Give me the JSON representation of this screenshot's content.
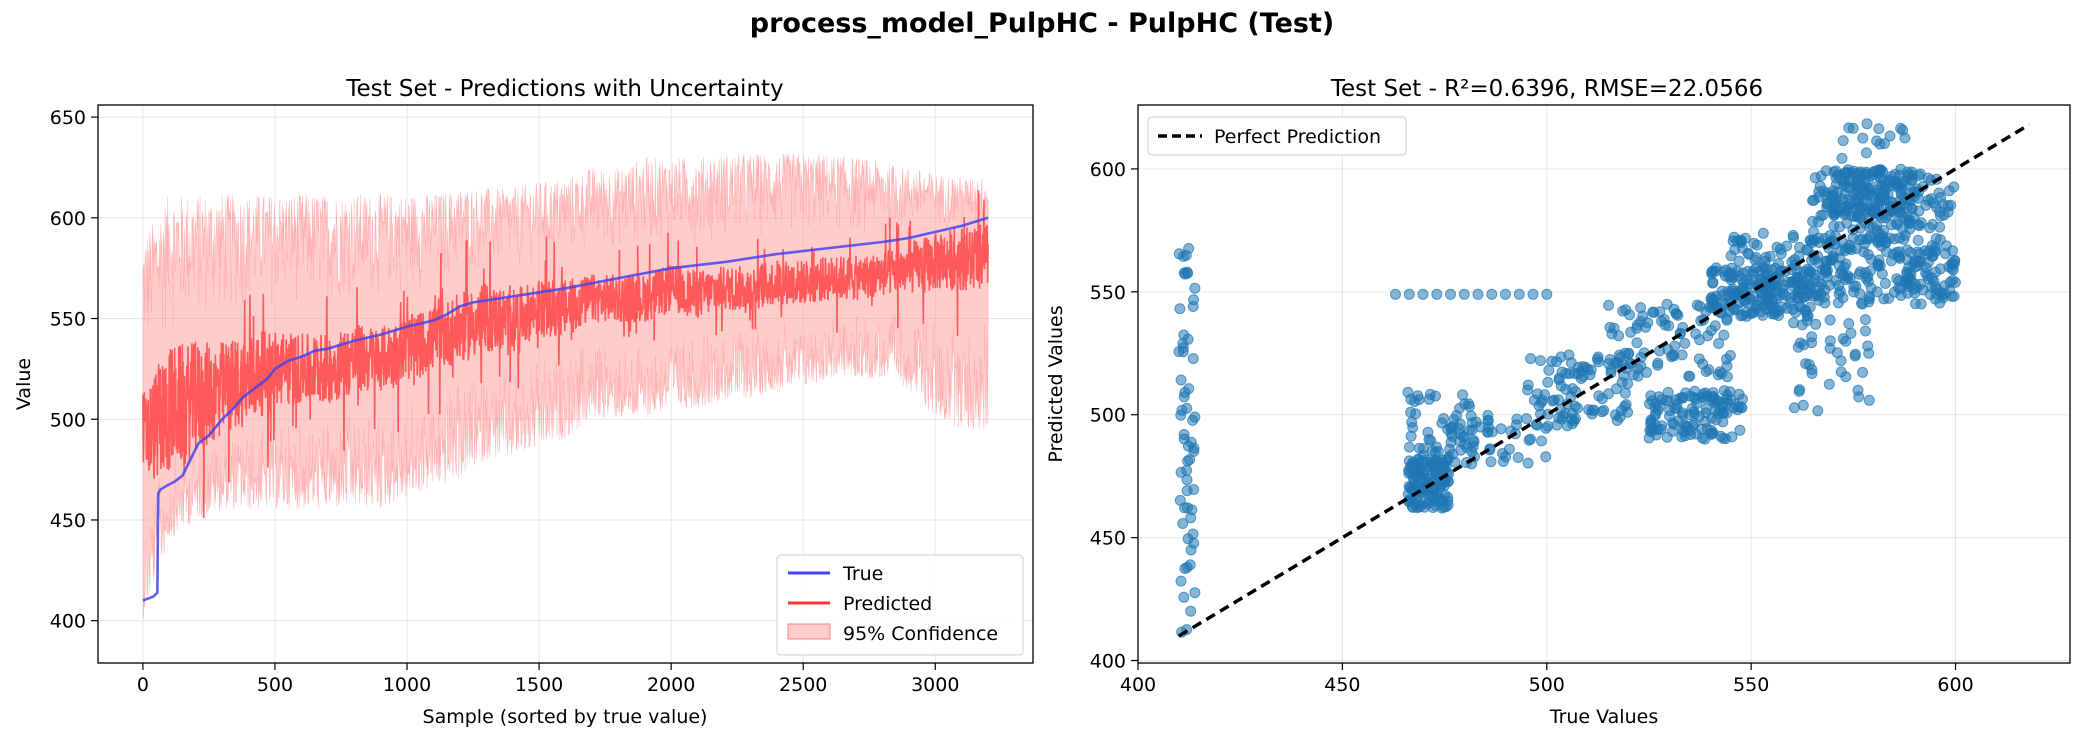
{
  "suptitle": "process_model_PulpHC - PulpHC (Test)",
  "chart_data": [
    {
      "type": "line",
      "title": "Test Set - Predictions with Uncertainty",
      "xlabel": "Sample (sorted by true value)",
      "ylabel": "Value",
      "xlim": [
        -170,
        3370
      ],
      "ylim": [
        379,
        656
      ],
      "xticks": [
        0,
        500,
        1000,
        1500,
        2000,
        2500,
        3000
      ],
      "yticks": [
        400,
        450,
        500,
        550,
        600,
        650
      ],
      "grid": true,
      "legend_position": "lower-right",
      "series": [
        {
          "name": "True",
          "color": "#4444ee",
          "x": [
            0,
            40,
            55,
            58,
            65,
            90,
            120,
            150,
            180,
            210,
            250,
            300,
            340,
            380,
            420,
            470,
            500,
            550,
            600,
            650,
            700,
            800,
            900,
            1000,
            1100,
            1150,
            1200,
            1250,
            1400,
            1600,
            1800,
            2000,
            2200,
            2400,
            2600,
            2800,
            2900,
            3000,
            3100,
            3200
          ],
          "y": [
            410,
            412,
            414,
            463,
            465,
            467,
            469,
            472,
            480,
            488,
            492,
            500,
            505,
            511,
            515,
            520,
            525,
            529,
            531,
            534,
            535,
            539,
            542,
            546,
            549,
            552,
            556,
            558,
            561,
            565,
            570,
            575,
            578,
            582,
            585,
            588,
            590,
            593,
            596,
            600
          ]
        },
        {
          "name": "Predicted",
          "color": "#ff3333",
          "x": [
            0,
            100,
            200,
            300,
            400,
            500,
            600,
            700,
            800,
            900,
            1000,
            1100,
            1200,
            1300,
            1400,
            1500,
            1600,
            1700,
            1800,
            1900,
            2000,
            2100,
            2200,
            2300,
            2400,
            2500,
            2600,
            2700,
            2800,
            2900,
            3000,
            3100,
            3200
          ],
          "y": [
            490,
            505,
            510,
            515,
            520,
            525,
            525,
            525,
            530,
            530,
            535,
            540,
            545,
            550,
            550,
            555,
            555,
            560,
            560,
            560,
            565,
            562,
            565,
            565,
            568,
            568,
            570,
            570,
            572,
            575,
            578,
            580,
            580
          ],
          "spread": [
            30,
            40,
            35,
            30,
            28,
            25,
            22,
            22,
            22,
            20,
            20,
            20,
            22,
            22,
            18,
            18,
            18,
            15,
            15,
            15,
            15,
            15,
            14,
            14,
            14,
            14,
            14,
            14,
            14,
            16,
            18,
            20,
            22
          ]
        },
        {
          "name": "95% Confidence",
          "color": "#ff9999",
          "x": [
            0,
            100,
            200,
            300,
            400,
            500,
            600,
            700,
            800,
            900,
            1000,
            1100,
            1200,
            1300,
            1400,
            1500,
            1600,
            1700,
            1800,
            1900,
            2000,
            2100,
            2200,
            2300,
            2400,
            2500,
            2600,
            2700,
            2800,
            2900,
            3000,
            3100,
            3200
          ],
          "lower": [
            400,
            440,
            450,
            455,
            455,
            455,
            455,
            455,
            455,
            455,
            460,
            465,
            470,
            480,
            480,
            485,
            490,
            500,
            500,
            500,
            505,
            505,
            510,
            510,
            515,
            515,
            520,
            520,
            520,
            515,
            500,
            495,
            492
          ],
          "upper": [
            590,
            612,
            612,
            612,
            612,
            612,
            612,
            612,
            612,
            612,
            612,
            612,
            615,
            615,
            615,
            618,
            620,
            625,
            625,
            630,
            630,
            630,
            632,
            632,
            632,
            632,
            632,
            630,
            628,
            625,
            622,
            620,
            620
          ]
        }
      ]
    },
    {
      "type": "scatter",
      "title": "Test Set - R²=0.6396, RMSE=22.0566",
      "xlabel": "True Values",
      "ylabel": "Predicted Values",
      "xlim": [
        400,
        628
      ],
      "ylim": [
        399,
        626
      ],
      "xticks": [
        400,
        450,
        500,
        550,
        600
      ],
      "yticks": [
        400,
        450,
        500,
        550,
        600
      ],
      "grid": true,
      "legend_position": "top-left",
      "point_color": "#1f77b4",
      "reference_line": {
        "name": "Perfect Prediction",
        "color": "#000000",
        "x": [
          410,
          618
        ],
        "y": [
          410,
          618
        ]
      },
      "clusters": [
        {
          "x": [
            410,
            414
          ],
          "y": [
            410,
            568
          ],
          "n": 60
        },
        {
          "x": [
            466,
            476
          ],
          "y": [
            462,
            482
          ],
          "n": 120
        },
        {
          "x": [
            466,
            482
          ],
          "y": [
            478,
            510
          ],
          "n": 50
        },
        {
          "x": [
            476,
            500
          ],
          "y": [
            480,
            500
          ],
          "n": 50
        },
        {
          "x": [
            495,
            520
          ],
          "y": [
            495,
            525
          ],
          "n": 90
        },
        {
          "x": [
            515,
            545
          ],
          "y": [
            515,
            545
          ],
          "n": 90
        },
        {
          "x": [
            525,
            548
          ],
          "y": [
            490,
            510
          ],
          "n": 120
        },
        {
          "x": [
            540,
            565
          ],
          "y": [
            540,
            560
          ],
          "n": 160
        },
        {
          "x": [
            545,
            570
          ],
          "y": [
            545,
            575
          ],
          "n": 100
        },
        {
          "x": [
            565,
            600
          ],
          "y": [
            545,
            600
          ],
          "n": 300
        },
        {
          "x": [
            570,
            590
          ],
          "y": [
            580,
            600
          ],
          "n": 120
        },
        {
          "x": [
            560,
            580
          ],
          "y": [
            500,
            540
          ],
          "n": 40
        },
        {
          "x": [
            585,
            600
          ],
          "y": [
            548,
            570
          ],
          "n": 40
        },
        {
          "x": [
            572,
            590
          ],
          "y": [
            600,
            620
          ],
          "n": 15
        }
      ],
      "lines_of_points": [
        {
          "x": [
            463,
            500
          ],
          "y": [
            549,
            549
          ],
          "n": 12
        }
      ]
    }
  ]
}
